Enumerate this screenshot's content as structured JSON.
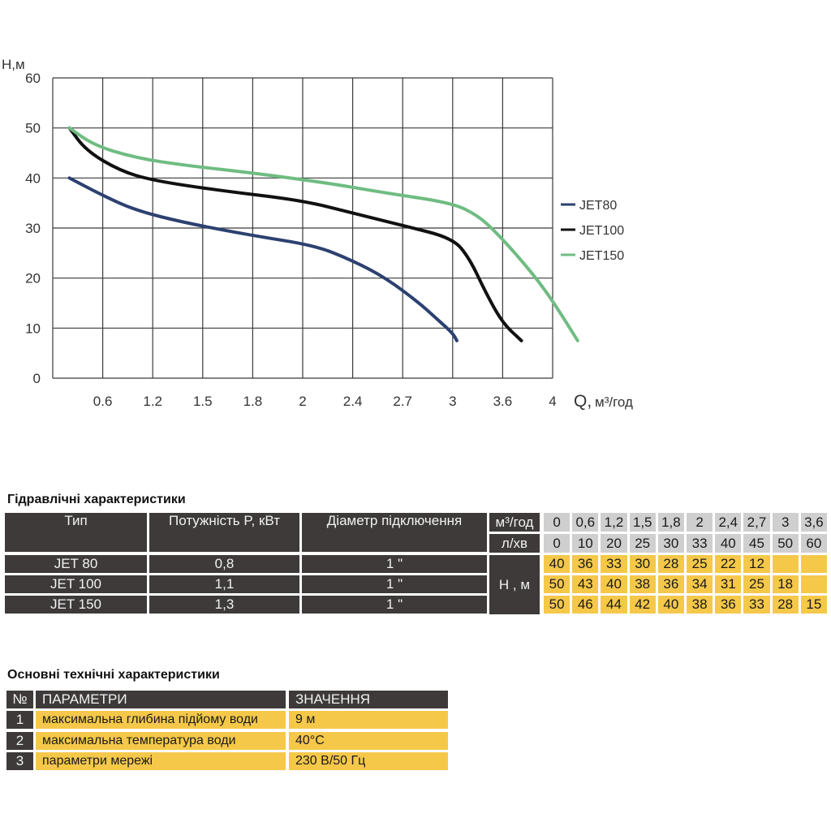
{
  "chart_data": {
    "type": "line",
    "ylabel": "H,м",
    "xlabel_main": "Q,",
    "xlabel_unit": "м³/год",
    "xlim": [
      0,
      4
    ],
    "ylim": [
      0,
      60
    ],
    "grid": true,
    "legend_position": "right",
    "x_tick_labels": [
      "0.6",
      "1.2",
      "1.5",
      "1.8",
      "2",
      "2.4",
      "2.7",
      "3",
      "3.6",
      "4"
    ],
    "y_tick_labels": [
      "0",
      "10",
      "20",
      "30",
      "40",
      "50",
      "60"
    ],
    "y_ticks": [
      0,
      10,
      20,
      30,
      40,
      50,
      60
    ],
    "series": [
      {
        "name": "JET80",
        "color": "#2c4170",
        "points": [
          [
            0.2,
            40
          ],
          [
            0.6,
            36.5
          ],
          [
            1.0,
            33.5
          ],
          [
            1.4,
            31
          ],
          [
            1.8,
            28.5
          ],
          [
            2.1,
            26.5
          ],
          [
            2.4,
            23.5
          ],
          [
            2.6,
            20
          ],
          [
            2.8,
            15
          ],
          [
            2.9,
            12
          ],
          [
            3.0,
            9
          ],
          [
            3.05,
            7.5
          ]
        ]
      },
      {
        "name": "JET100",
        "color": "#111111",
        "points": [
          [
            0.2,
            50
          ],
          [
            0.4,
            45.5
          ],
          [
            0.8,
            41.5
          ],
          [
            1.2,
            39.5
          ],
          [
            1.6,
            37.5
          ],
          [
            2.0,
            35.5
          ],
          [
            2.4,
            33
          ],
          [
            2.7,
            30.5
          ],
          [
            3.0,
            28
          ],
          [
            3.2,
            24
          ],
          [
            3.4,
            17
          ],
          [
            3.6,
            11
          ],
          [
            3.75,
            7.5
          ]
        ]
      },
      {
        "name": "JET150",
        "color": "#6fbc82",
        "points": [
          [
            0.2,
            50
          ],
          [
            0.5,
            46.5
          ],
          [
            1.0,
            44
          ],
          [
            1.4,
            42.5
          ],
          [
            1.8,
            41
          ],
          [
            2.2,
            39
          ],
          [
            2.6,
            37
          ],
          [
            3.0,
            35
          ],
          [
            3.3,
            32.5
          ],
          [
            3.5,
            29.5
          ],
          [
            3.7,
            25
          ],
          [
            3.9,
            19
          ],
          [
            4.05,
            13.5
          ],
          [
            4.2,
            7.5
          ]
        ]
      }
    ]
  },
  "hydraulic": {
    "title": "Гідравлічні характеристики",
    "headers": {
      "type": "Тип",
      "power": "Потужність   P, кВт",
      "diameter": "Діаметр підключення",
      "flow_m3": "м³/год",
      "flow_lmin": "л/хв",
      "head": "Н , м"
    },
    "flow_m3_values": [
      "0",
      "0,6",
      "1,2",
      "1,5",
      "1,8",
      "2",
      "2,4",
      "2,7",
      "3",
      "3,6"
    ],
    "flow_lmin_values": [
      "0",
      "10",
      "20",
      "25",
      "30",
      "33",
      "40",
      "45",
      "50",
      "60"
    ],
    "rows": [
      {
        "type": "JET 80",
        "power": "0,8",
        "diameter": "1 \"",
        "head": [
          "40",
          "36",
          "33",
          "30",
          "28",
          "25",
          "22",
          "12",
          "",
          ""
        ]
      },
      {
        "type": "JET 100",
        "power": "1,1",
        "diameter": "1 \"",
        "head": [
          "50",
          "43",
          "40",
          "38",
          "36",
          "34",
          "31",
          "25",
          "18",
          ""
        ]
      },
      {
        "type": "JET 150",
        "power": "1,3",
        "diameter": "1 \"",
        "head": [
          "50",
          "46",
          "44",
          "42",
          "40",
          "38",
          "36",
          "33",
          "28",
          "15"
        ]
      }
    ]
  },
  "technical": {
    "title": "Основні технічні характеристики",
    "headers": {
      "num": "№",
      "param": "ПАРАМЕТРИ",
      "value": "ЗНАЧЕННЯ"
    },
    "rows": [
      {
        "num": "1",
        "param": "максимальна глибина підйому води",
        "value": "9 м"
      },
      {
        "num": "2",
        "param": "максимальна температура води",
        "value": "40°С"
      },
      {
        "num": "3",
        "param": "параметри мережі",
        "value": "230 В/50 Гц"
      }
    ]
  }
}
